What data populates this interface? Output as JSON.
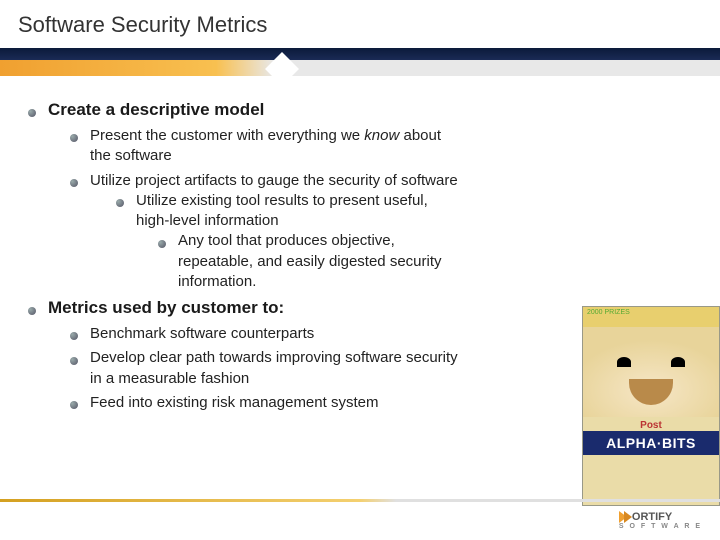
{
  "title": "Software Security Metrics",
  "accent": {
    "navy": "#0b1a3a",
    "orange": "#f0a030",
    "gray": "#e8e8e8"
  },
  "sections": [
    {
      "heading": "Create a descriptive model",
      "items": [
        {
          "text_before": "Present the customer with everything we ",
          "em": "know",
          "text_after": " about the software"
        },
        {
          "text": "Utilize project artifacts to gauge the security of software",
          "sub": [
            {
              "text": "Utilize existing tool results to present useful, high-level information",
              "sub": [
                {
                  "text": "Any tool that produces objective, repeatable, and easily digested security information."
                }
              ]
            }
          ]
        }
      ]
    },
    {
      "heading": "Metrics used by customer to:",
      "items": [
        {
          "text": "Benchmark software counterparts"
        },
        {
          "text": "Develop clear path towards improving software security in a measurable fashion"
        },
        {
          "text": "Feed into existing risk management system"
        }
      ]
    }
  ],
  "side_image": {
    "banner": "2000 PRIZES",
    "post": "Post",
    "brand": "ALPHA·BITS"
  },
  "footer": {
    "name": "ORTIFY",
    "sub": "S O F T W A R E"
  }
}
